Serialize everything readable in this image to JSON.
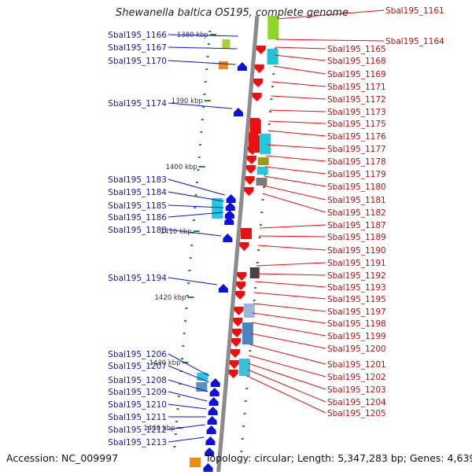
{
  "title": "Shewanella baltica OS195, complete genome",
  "footer": {
    "accession": "Accession: NC_009997",
    "topology": "Topology: circular; Length: 5,347,283 bp; Genes: 4,639"
  },
  "scale_labels": [
    "1380 kbp",
    "1390 kbp",
    "1400 kbp",
    "1410 kbp",
    "1420 kbp",
    "1430 kbp",
    "1440 kbp"
  ],
  "left_genes": [
    "Sbal195_1166",
    "Sbal195_1167",
    "Sbal195_1170",
    "Sbal195_1174",
    "Sbal195_1183",
    "Sbal195_1184",
    "Sbal195_1185",
    "Sbal195_1186",
    "Sbal195_1188",
    "Sbal195_1194",
    "Sbal195_1206",
    "Sbal195_1207",
    "Sbal195_1208",
    "Sbal195_1209",
    "Sbal195_1210",
    "Sbal195_1211",
    "Sbal195_1212",
    "Sbal195_1213"
  ],
  "right_genes": [
    "Sbal195_1161",
    "Sbal195_1164",
    "Sbal195_1165",
    "Sbal195_1168",
    "Sbal195_1169",
    "Sbal195_1171",
    "Sbal195_1172",
    "Sbal195_1173",
    "Sbal195_1175",
    "Sbal195_1176",
    "Sbal195_1177",
    "Sbal195_1178",
    "Sbal195_1179",
    "Sbal195_1180",
    "Sbal195_1181",
    "Sbal195_1182",
    "Sbal195_1187",
    "Sbal195_1189",
    "Sbal195_1190",
    "Sbal195_1191",
    "Sbal195_1192",
    "Sbal195_1193",
    "Sbal195_1195",
    "Sbal195_1197",
    "Sbal195_1198",
    "Sbal195_1199",
    "Sbal195_1200",
    "Sbal195_1201",
    "Sbal195_1202",
    "Sbal195_1203",
    "Sbal195_1204",
    "Sbal195_1205"
  ],
  "colors": {
    "forward_strand": "#e81010",
    "reverse_strand": "#1010e0",
    "left_label": "#1a1aa8",
    "right_label": "#c01010",
    "scale_tick": "#2a8a2a",
    "backbone": "#8c8c8c"
  }
}
